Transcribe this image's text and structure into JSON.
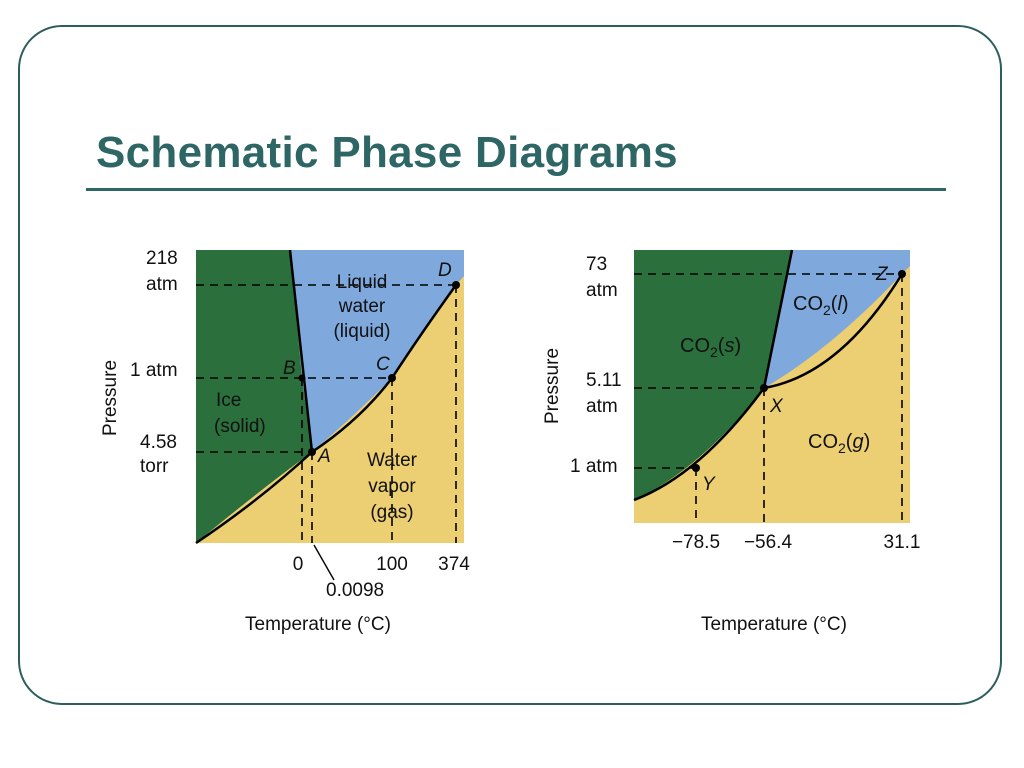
{
  "slide": {
    "title": "Schematic Phase Diagrams"
  },
  "colors": {
    "accent": "#2e6666",
    "solid": "#2a6f3c",
    "liquid": "#7fa8dd",
    "gas": "#eccf72"
  },
  "water": {
    "y_axis": "Pressure",
    "x_axis": "Temperature (°C)",
    "y_ticks": [
      {
        "line1": "218",
        "line2": "atm"
      },
      {
        "line1": "1 atm",
        "line2": ""
      },
      {
        "line1": "4.58",
        "line2": "torr"
      }
    ],
    "x_ticks": [
      "0",
      "100",
      "374"
    ],
    "x_tick_extra": "0.0098",
    "regions": {
      "liquid": [
        "Liquid",
        "water",
        "(liquid)"
      ],
      "solid": [
        "Ice",
        "(solid)"
      ],
      "gas": [
        "Water",
        "vapor",
        "(gas)"
      ]
    },
    "points": [
      "A",
      "B",
      "C",
      "D"
    ]
  },
  "co2": {
    "y_axis": "Pressure",
    "x_axis": "Temperature (°C)",
    "y_ticks": [
      {
        "line1": "73",
        "line2": "atm"
      },
      {
        "line1": "5.11",
        "line2": "atm"
      },
      {
        "line1": "1 atm",
        "line2": ""
      }
    ],
    "x_ticks": [
      "−78.5",
      "−56.4",
      "31.1"
    ],
    "regions": {
      "solid": {
        "base": "CO",
        "sub": "2",
        "phase": "s"
      },
      "liquid": {
        "base": "CO",
        "sub": "2",
        "phase": "l"
      },
      "gas": {
        "base": "CO",
        "sub": "2",
        "phase": "g"
      }
    },
    "points": [
      "X",
      "Y",
      "Z"
    ]
  }
}
